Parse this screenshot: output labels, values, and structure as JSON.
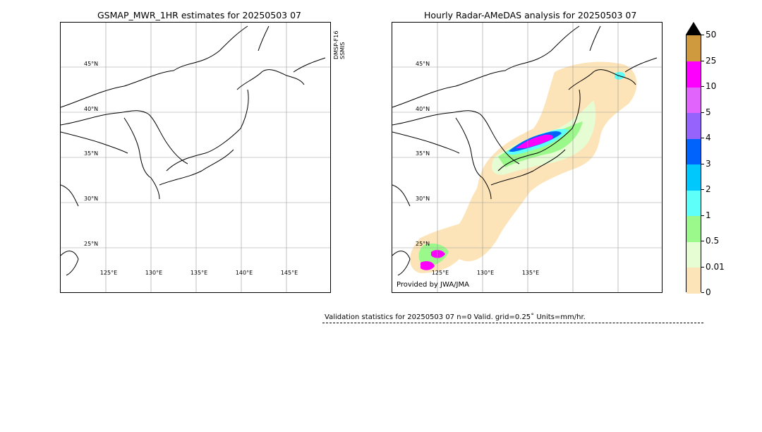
{
  "left_panel": {
    "title": "GSMAP_MWR_1HR estimates for 20250503 07",
    "satellite_label_line1": "DMSP-F16",
    "satellite_label_line2": "SSMIS",
    "lat_labels": [
      "45°N",
      "40°N",
      "35°N",
      "30°N",
      "25°N"
    ],
    "lon_labels": [
      "125°E",
      "130°E",
      "135°E",
      "140°E",
      "145°E"
    ]
  },
  "right_panel": {
    "title": "Hourly Radar-AMeDAS analysis for 20250503 07",
    "lat_labels": [
      "45°N",
      "40°N",
      "35°N",
      "30°N",
      "25°N"
    ],
    "lon_labels": [
      "125°E",
      "130°E",
      "135°E"
    ],
    "credit": "Provided by JWA/JMA"
  },
  "colorbar": {
    "ticks": [
      "0",
      "0.01",
      "0.5",
      "1",
      "2",
      "3",
      "4",
      "5",
      "10",
      "25",
      "50"
    ],
    "colors": [
      "#fde4b8",
      "#e6fcd2",
      "#9af98a",
      "#5ffff9",
      "#00c8fc",
      "#0064fc",
      "#9664fc",
      "#e164fc",
      "#fd00fd",
      "#cf9a3d"
    ],
    "extend_color": "#000000"
  },
  "validation": {
    "text": "Validation statistics for 20250503 07  n=0 Valid. grid=0.25˚ Units=mm/hr."
  }
}
